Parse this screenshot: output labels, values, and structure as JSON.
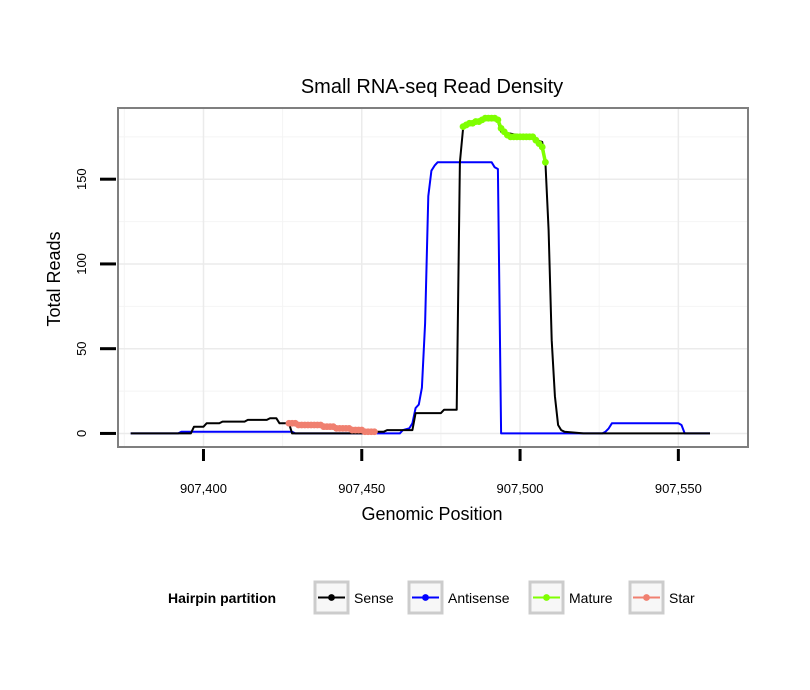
{
  "chart_data": {
    "type": "line",
    "title": "Small RNA-seq Read Density",
    "xlabel": "Genomic Position",
    "ylabel": "Total Reads",
    "xlim": [
      907373,
      907572
    ],
    "ylim": [
      -8,
      192
    ],
    "x_ticks": [
      907400,
      907450,
      907500,
      907550
    ],
    "x_tick_labels": [
      "907,400",
      "907,450",
      "907,500",
      "907,550"
    ],
    "y_ticks": [
      0,
      50,
      100,
      150
    ],
    "y_tick_labels": [
      "0",
      "50",
      "100",
      "150"
    ],
    "grid": true,
    "legend": {
      "title": "Hairpin partition",
      "position": "bottom",
      "entries": [
        {
          "name": "Sense",
          "color": "#000000"
        },
        {
          "name": "Antisense",
          "color": "#0000ff"
        },
        {
          "name": "Mature",
          "color": "#7fff00"
        },
        {
          "name": "Star",
          "color": "#f08070"
        }
      ]
    },
    "series": [
      {
        "name": "Antisense",
        "color": "#0000ff",
        "style": "line",
        "x": [
          907377,
          907392,
          907393,
          907428,
          907429,
          907462,
          907463,
          907465,
          907466,
          907467,
          907468,
          907469,
          907470,
          907471,
          907472,
          907473,
          907474,
          907475,
          907476,
          907491,
          907492,
          907493,
          907494,
          907526,
          907527,
          907528,
          907529,
          907550,
          907551,
          907552,
          907560
        ],
        "y": [
          0,
          0,
          1,
          1,
          0,
          0,
          2,
          3,
          6,
          15,
          17,
          27,
          65,
          140,
          155,
          158,
          160,
          160,
          160,
          160,
          157,
          156,
          0,
          0,
          1,
          3,
          6,
          6,
          5,
          0,
          0
        ]
      },
      {
        "name": "Sense",
        "color": "#000000",
        "style": "line",
        "x": [
          907377,
          907396,
          907397,
          907400,
          907401,
          907405,
          907406,
          907413,
          907414,
          907420,
          907421,
          907423,
          907424,
          907427,
          907428,
          907452,
          907453,
          907457,
          907458,
          907466,
          907467,
          907475,
          907476,
          907480,
          907481,
          907482,
          907483,
          907484,
          907490,
          907491,
          907492,
          907493,
          907494,
          907502,
          907507,
          907508,
          907509,
          907510,
          907511,
          907512,
          907513,
          907514,
          907520,
          907560
        ],
        "y": [
          0,
          0,
          4,
          4,
          6,
          6,
          7,
          7,
          8,
          8,
          9,
          9,
          6,
          6,
          0,
          0,
          1,
          1,
          2,
          2,
          12,
          12,
          14,
          14,
          160,
          180,
          182,
          183,
          186,
          187,
          186,
          184,
          178,
          175,
          172,
          160,
          120,
          55,
          22,
          5,
          2,
          1,
          0,
          0
        ]
      },
      {
        "name": "Mature",
        "color": "#7fff00",
        "style": "points",
        "x": [
          907482,
          907483,
          907484,
          907485,
          907486,
          907487,
          907488,
          907489,
          907490,
          907491,
          907492,
          907493,
          907494,
          907495,
          907496,
          907497,
          907498,
          907499,
          907500,
          907501,
          907502,
          907503,
          907504,
          907505,
          907506,
          907507,
          907508
        ],
        "y": [
          181,
          182,
          183,
          183,
          184,
          184,
          185,
          186,
          186,
          186,
          186,
          185,
          180,
          178,
          176,
          175,
          175,
          175,
          175,
          175,
          175,
          175,
          175,
          173,
          171,
          169,
          160
        ]
      },
      {
        "name": "Star",
        "color": "#f08070",
        "style": "points",
        "x": [
          907427,
          907428,
          907429,
          907430,
          907431,
          907432,
          907433,
          907434,
          907435,
          907436,
          907437,
          907438,
          907439,
          907440,
          907441,
          907442,
          907443,
          907444,
          907445,
          907446,
          907447,
          907448,
          907449,
          907450,
          907451,
          907452,
          907453,
          907454
        ],
        "y": [
          6,
          6,
          6,
          5,
          5,
          5,
          5,
          5,
          5,
          5,
          5,
          4,
          4,
          4,
          4,
          3,
          3,
          3,
          3,
          3,
          2,
          2,
          2,
          2,
          1,
          1,
          1,
          1
        ]
      }
    ]
  }
}
